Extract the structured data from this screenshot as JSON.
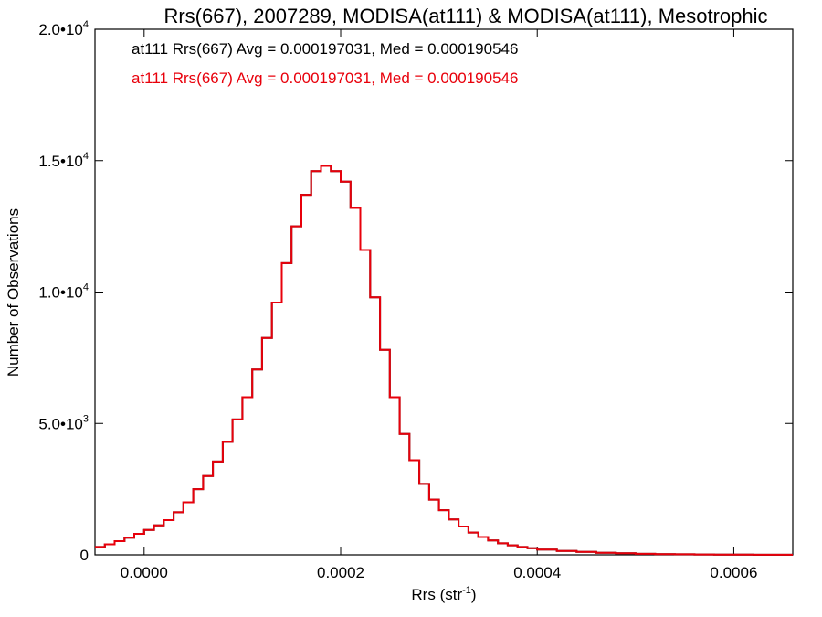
{
  "chart_data": {
    "type": "line",
    "style": "step-histogram",
    "title": "Rrs(667), 2007289, MODISA(at111) & MODISA(at111), Mesotrophic",
    "xlabel_base": "Rrs (str",
    "xlabel_sup": "-1",
    "xlabel_close": ")",
    "ylabel": "Number of Observations",
    "xlim": [
      -5e-05,
      0.00066
    ],
    "ylim": [
      0,
      20000
    ],
    "grid": false,
    "legend_position": "top-left",
    "x_ticks": [
      {
        "value": 0.0,
        "label": "0.0000"
      },
      {
        "value": 0.0002,
        "label": "0.0002"
      },
      {
        "value": 0.0004,
        "label": "0.0004"
      },
      {
        "value": 0.0006,
        "label": "0.0006"
      }
    ],
    "y_ticks": [
      {
        "value": 0,
        "mant": "0",
        "exp": ""
      },
      {
        "value": 5000,
        "mant": "5.0•10",
        "exp": "3"
      },
      {
        "value": 10000,
        "mant": "1.0•10",
        "exp": "4"
      },
      {
        "value": 15000,
        "mant": "1.5•10",
        "exp": "4"
      },
      {
        "value": 20000,
        "mant": "2.0•10",
        "exp": "4"
      }
    ],
    "series": [
      {
        "name": "at111 Rrs(667) Avg = 0.000197031, Med = 0.000190546",
        "color": "#000000",
        "x": [
          -5e-05,
          -4e-05,
          -3e-05,
          -2e-05,
          -1e-05,
          0.0,
          1e-05,
          2e-05,
          3e-05,
          4e-05,
          5e-05,
          6e-05,
          7e-05,
          8e-05,
          9e-05,
          0.0001,
          0.00011,
          0.00012,
          0.00013,
          0.00014,
          0.00015,
          0.00016,
          0.00017,
          0.00018,
          0.00019,
          0.0002,
          0.00021,
          0.00022,
          0.00023,
          0.00024,
          0.00025,
          0.00026,
          0.00027,
          0.00028,
          0.00029,
          0.0003,
          0.00031,
          0.00032,
          0.00033,
          0.00034,
          0.00035,
          0.00036,
          0.00037,
          0.00038,
          0.00039,
          0.0004,
          0.00042,
          0.00044,
          0.00046,
          0.00048,
          0.0005,
          0.00052,
          0.00054,
          0.00056,
          0.00058,
          0.0006,
          0.00062,
          0.00064,
          0.00066
        ],
        "y": [
          300,
          400,
          520,
          650,
          800,
          950,
          1120,
          1320,
          1620,
          2000,
          2500,
          3000,
          3550,
          4300,
          5150,
          6000,
          7050,
          8250,
          9600,
          11100,
          12500,
          13700,
          14600,
          14800,
          14600,
          14200,
          13200,
          11600,
          9800,
          7800,
          6000,
          4600,
          3600,
          2700,
          2100,
          1700,
          1350,
          1080,
          850,
          680,
          550,
          440,
          360,
          300,
          250,
          200,
          150,
          110,
          80,
          58,
          40,
          28,
          20,
          14,
          10,
          7,
          5,
          3,
          2
        ]
      },
      {
        "name": "at111 Rrs(667) Avg = 0.000197031, Med = 0.000190546",
        "color": "#e8000b",
        "x": [
          -5e-05,
          -4e-05,
          -3e-05,
          -2e-05,
          -1e-05,
          0.0,
          1e-05,
          2e-05,
          3e-05,
          4e-05,
          5e-05,
          6e-05,
          7e-05,
          8e-05,
          9e-05,
          0.0001,
          0.00011,
          0.00012,
          0.00013,
          0.00014,
          0.00015,
          0.00016,
          0.00017,
          0.00018,
          0.00019,
          0.0002,
          0.00021,
          0.00022,
          0.00023,
          0.00024,
          0.00025,
          0.00026,
          0.00027,
          0.00028,
          0.00029,
          0.0003,
          0.00031,
          0.00032,
          0.00033,
          0.00034,
          0.00035,
          0.00036,
          0.00037,
          0.00038,
          0.00039,
          0.0004,
          0.00042,
          0.00044,
          0.00046,
          0.00048,
          0.0005,
          0.00052,
          0.00054,
          0.00056,
          0.00058,
          0.0006,
          0.00062,
          0.00064,
          0.00066
        ],
        "y": [
          300,
          400,
          520,
          650,
          800,
          950,
          1120,
          1320,
          1620,
          2000,
          2500,
          3000,
          3550,
          4300,
          5150,
          6000,
          7050,
          8250,
          9600,
          11100,
          12500,
          13700,
          14600,
          14800,
          14600,
          14200,
          13200,
          11600,
          9800,
          7800,
          6000,
          4600,
          3600,
          2700,
          2100,
          1700,
          1350,
          1080,
          850,
          680,
          550,
          440,
          360,
          300,
          250,
          200,
          150,
          110,
          80,
          58,
          40,
          28,
          20,
          14,
          10,
          7,
          5,
          3,
          2
        ]
      }
    ]
  }
}
